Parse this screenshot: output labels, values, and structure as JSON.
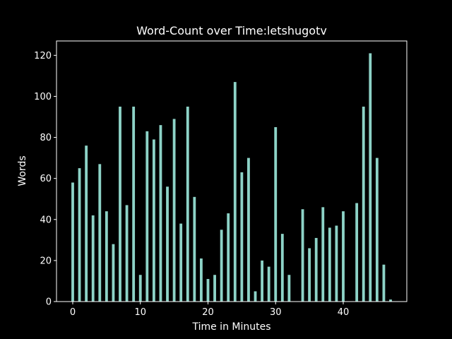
{
  "colors": {
    "background": "#000000",
    "foreground": "#ffffff",
    "bar": "#8dd3c7"
  },
  "chart_data": {
    "type": "bar",
    "title": "Word-Count over Time:letshugotv",
    "xlabel": "Time in Minutes",
    "ylabel": "Words",
    "xlim": [
      -2.4,
      49.4
    ],
    "ylim": [
      0,
      127
    ],
    "xticks": [
      0,
      10,
      20,
      30,
      40
    ],
    "yticks": [
      0,
      20,
      40,
      60,
      80,
      100,
      120
    ],
    "grid": false,
    "x": [
      0,
      1,
      2,
      3,
      4,
      5,
      6,
      7,
      8,
      9,
      10,
      11,
      12,
      13,
      14,
      15,
      16,
      17,
      18,
      19,
      20,
      21,
      22,
      23,
      24,
      25,
      26,
      27,
      28,
      29,
      30,
      31,
      32,
      34,
      35,
      36,
      37,
      38,
      39,
      40,
      42,
      43,
      44,
      45,
      46,
      47
    ],
    "values": [
      58,
      65,
      76,
      42,
      67,
      44,
      28,
      95,
      47,
      95,
      13,
      83,
      79,
      86,
      56,
      89,
      38,
      95,
      51,
      21,
      11,
      13,
      35,
      43,
      107,
      63,
      70,
      5,
      20,
      17,
      85,
      33,
      13,
      45,
      26,
      31,
      46,
      36,
      37,
      44,
      48,
      95,
      121,
      70,
      18,
      1
    ]
  }
}
